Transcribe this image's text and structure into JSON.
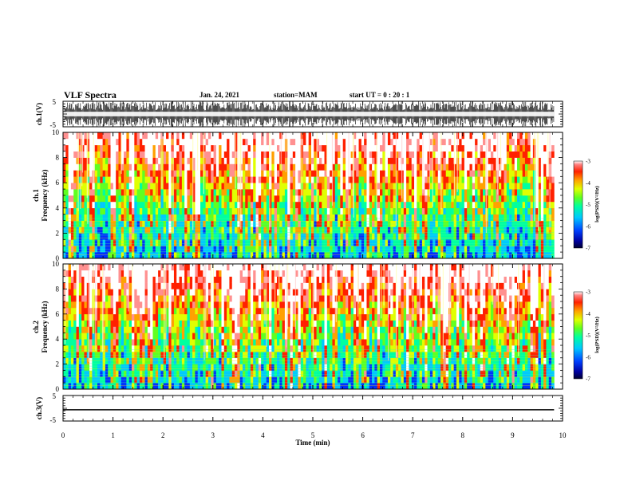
{
  "header": {
    "title": "VLF Spectra",
    "date": "Jan. 24, 2021",
    "station": "station=MAM",
    "start_ut": "start UT =  0 : 20 : 1"
  },
  "chart_data": [
    {
      "type": "line",
      "panel": "ch1-waveform",
      "ylabel": "ch.1(V)",
      "ylim": [
        -5,
        5
      ],
      "y_ticks": [
        "5",
        "-5"
      ],
      "xlim": [
        0,
        10
      ]
    },
    {
      "type": "heatmap",
      "panel": "ch1-spectrogram",
      "ylabel_line1": "ch.1",
      "ylabel_line2": "Frequency (kHz)",
      "ylim": [
        0,
        10
      ],
      "y_ticks": [
        "0",
        "2",
        "4",
        "6",
        "8",
        "10"
      ],
      "xlim": [
        0,
        10
      ],
      "data_end_min": 9.83,
      "colorbar": {
        "label": "log(PSD)(V²/Hz)",
        "range": [
          -7,
          -3
        ],
        "ticks": [
          "-3",
          "-4",
          "-5",
          "-6",
          "-7"
        ]
      }
    },
    {
      "type": "heatmap",
      "panel": "ch2-spectrogram",
      "ylabel_line1": "ch.2",
      "ylabel_line2": "Frequency (kHz)",
      "ylim": [
        0,
        10
      ],
      "y_ticks": [
        "0",
        "2",
        "4",
        "6",
        "8",
        "10"
      ],
      "xlim": [
        0,
        10
      ],
      "data_end_min": 9.83,
      "colorbar": {
        "label": "log(PSD)(V²/Hz)",
        "range": [
          -7,
          -3
        ],
        "ticks": [
          "-3",
          "-4",
          "-5",
          "-6",
          "-7"
        ]
      }
    },
    {
      "type": "line",
      "panel": "ch3-waveform",
      "ylabel": "ch.3(V)",
      "ylim": [
        -5,
        5
      ],
      "y_ticks": [
        "5",
        "-5"
      ],
      "xlim": [
        0,
        10
      ],
      "x_ticks": [
        "0",
        "1",
        "2",
        "3",
        "4",
        "5",
        "6",
        "7",
        "8",
        "9",
        "10"
      ],
      "xlabel": "Time (min)",
      "x": [
        0,
        9.83
      ],
      "y": [
        -0.6,
        -0.6
      ]
    }
  ]
}
